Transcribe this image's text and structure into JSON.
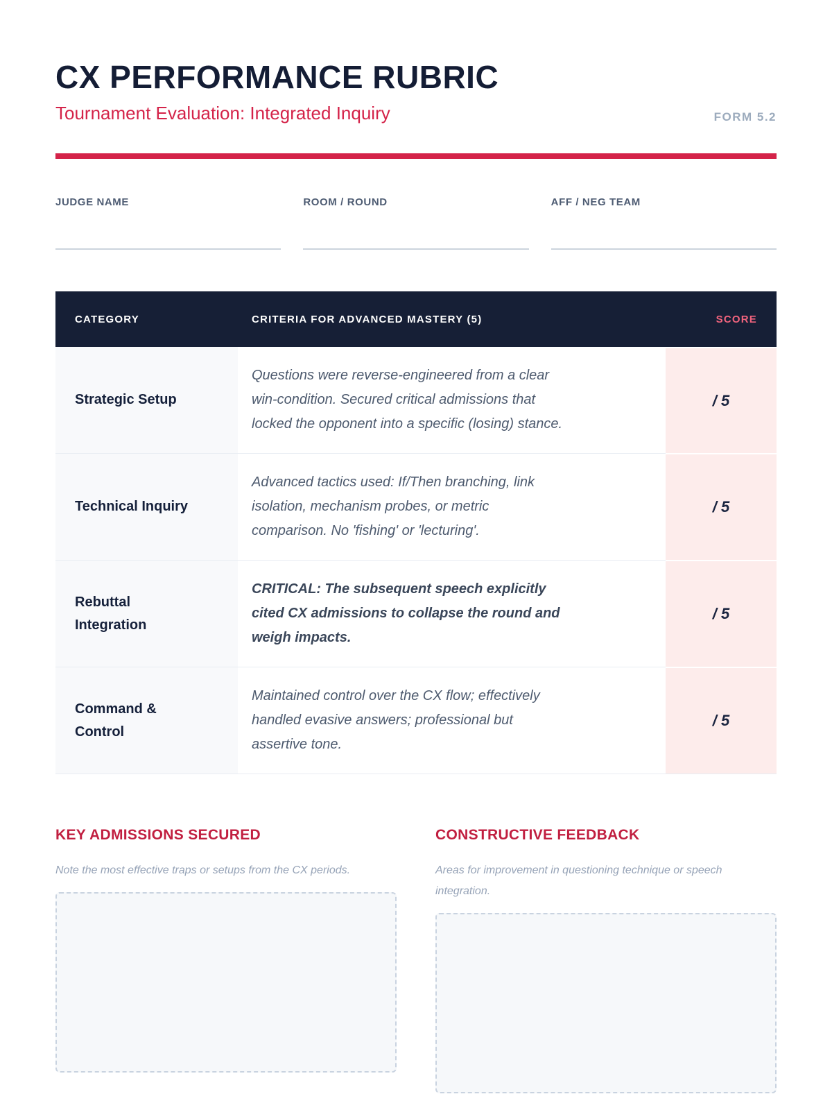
{
  "header": {
    "title": "CX PERFORMANCE RUBRIC",
    "subtitle": "Tournament Evaluation: Integrated Inquiry",
    "form_number": "FORM 5.2"
  },
  "fields": [
    {
      "label": "JUDGE NAME"
    },
    {
      "label": "ROOM / ROUND"
    },
    {
      "label": "AFF / NEG TEAM"
    }
  ],
  "table": {
    "columns": {
      "category": "CATEGORY",
      "criteria": "CRITERIA FOR ADVANCED MASTERY (5)",
      "score": "SCORE"
    },
    "rows": [
      {
        "category": "Strategic Setup",
        "criteria": "Questions were reverse-engineered from a clear\nwin-condition. Secured critical admissions that\nlocked the opponent into a specific (losing) stance.",
        "score": "/ 5"
      },
      {
        "category": "Technical Inquiry",
        "criteria": "Advanced tactics used: If/Then branching, link\nisolation, mechanism probes, or metric\ncomparison. No 'fishing' or 'lecturing'.",
        "score": "/ 5"
      },
      {
        "category": "Rebuttal\nIntegration",
        "criteria": "CRITICAL: The subsequent speech explicitly\ncited CX admissions to collapse the round and\nweigh impacts.",
        "score": "/ 5"
      },
      {
        "category": "Command &\nControl",
        "criteria": "Maintained control over the CX flow; effectively\nhandled evasive answers; professional but\nassertive tone.",
        "score": "/ 5"
      }
    ]
  },
  "sections": [
    {
      "heading": "KEY ADMISSIONS SECURED",
      "caption": "Note the most effective traps or setups from the CX periods."
    },
    {
      "heading": "CONSTRUCTIVE FEEDBACK",
      "caption": "Areas for improvement in questioning technique or speech\nintegration."
    }
  ],
  "colors": {
    "navy": "#161f36",
    "crimson": "#d42349",
    "crimson_deep": "#c11f40",
    "score_pink": "#f2647e",
    "score_cell_bg": "#fdeceb",
    "category_cell_bg": "#f8f9fb"
  }
}
